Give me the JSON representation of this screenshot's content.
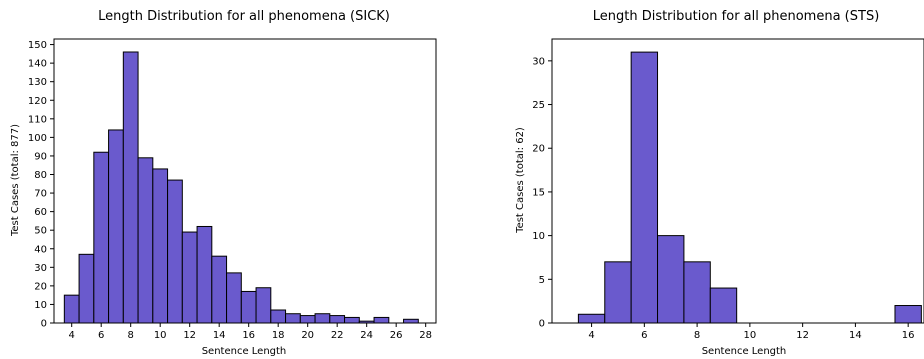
{
  "bar_color": "#6a5acd",
  "chart_data": [
    {
      "type": "bar",
      "title": "Length Distribution for all phenomena (SICK)",
      "xlabel": "Sentence Length",
      "ylabel": "Test Cases (total: 877)",
      "bin_width": 1,
      "x": [
        4,
        5,
        6,
        7,
        8,
        9,
        10,
        11,
        12,
        13,
        14,
        15,
        16,
        17,
        18,
        19,
        20,
        21,
        22,
        23,
        24,
        25,
        26,
        27
      ],
      "values": [
        15,
        37,
        92,
        104,
        146,
        89,
        83,
        77,
        49,
        52,
        36,
        27,
        17,
        19,
        7,
        5,
        4,
        5,
        4,
        3,
        1,
        3,
        0,
        2
      ],
      "xlim": [
        2.8,
        28.7
      ],
      "ylim": [
        0,
        153
      ],
      "xticks": [
        "4",
        "6",
        "8",
        "10",
        "12",
        "14",
        "16",
        "18",
        "20",
        "22",
        "24",
        "26",
        "28"
      ],
      "yticks": [
        "0",
        "10",
        "20",
        "30",
        "40",
        "50",
        "60",
        "70",
        "80",
        "90",
        "100",
        "110",
        "120",
        "130",
        "140",
        "150"
      ]
    },
    {
      "type": "bar",
      "title": "Length Distribution for all phenomena (STS)",
      "xlabel": "Sentence Length",
      "ylabel": "Test Cases (total: 62)",
      "bin_width": 1,
      "x": [
        4,
        5,
        6,
        7,
        8,
        9,
        10,
        11,
        12,
        13,
        14,
        15,
        16
      ],
      "values": [
        1,
        7,
        31,
        10,
        7,
        4,
        0,
        0,
        0,
        0,
        0,
        0,
        2
      ],
      "xlim": [
        2.5,
        16.6
      ],
      "ylim": [
        0,
        32.5
      ],
      "xticks": [
        "4",
        "6",
        "8",
        "10",
        "12",
        "14",
        "16"
      ],
      "yticks": [
        "0",
        "5",
        "10",
        "15",
        "20",
        "25",
        "30"
      ]
    }
  ]
}
